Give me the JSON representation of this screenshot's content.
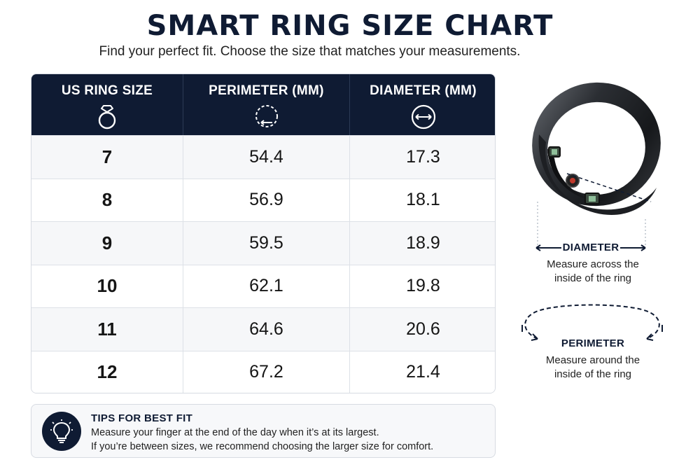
{
  "header": {
    "title": "SMART RING SIZE CHART",
    "subtitle": "Find your perfect fit. Choose the size that matches your measurements."
  },
  "table": {
    "columns": [
      {
        "label": "US RING SIZE",
        "icon": "ring-icon"
      },
      {
        "label": "PERIMETER (MM)",
        "icon": "perimeter-icon"
      },
      {
        "label": "DIAMETER (MM)",
        "icon": "diameter-icon"
      }
    ],
    "rows": [
      {
        "size": "7",
        "perimeter": "54.4",
        "diameter": "17.3"
      },
      {
        "size": "8",
        "perimeter": "56.9",
        "diameter": "18.1"
      },
      {
        "size": "9",
        "perimeter": "59.5",
        "diameter": "18.9"
      },
      {
        "size": "10",
        "perimeter": "62.1",
        "diameter": "19.8"
      },
      {
        "size": "11",
        "perimeter": "64.6",
        "diameter": "20.6"
      },
      {
        "size": "12",
        "perimeter": "67.2",
        "diameter": "21.4"
      }
    ]
  },
  "diameter_info": {
    "label": "DIAMETER",
    "desc_line1": "Measure across the",
    "desc_line2": "inside of the ring"
  },
  "perimeter_info": {
    "label": "PERIMETER",
    "desc_line1": "Measure around the",
    "desc_line2": "inside of the ring"
  },
  "tips": {
    "icon": "lightbulb-icon",
    "title": "TIPS FOR BEST FIT",
    "line1": "Measure your finger at the end of the day when it’s at its largest.",
    "line2": "If you’re between sizes, we recommend choosing the larger size for comfort."
  },
  "colors": {
    "navy": "#0f1b33",
    "row_alt": "#f6f7f9",
    "border": "#d7dbe2"
  }
}
